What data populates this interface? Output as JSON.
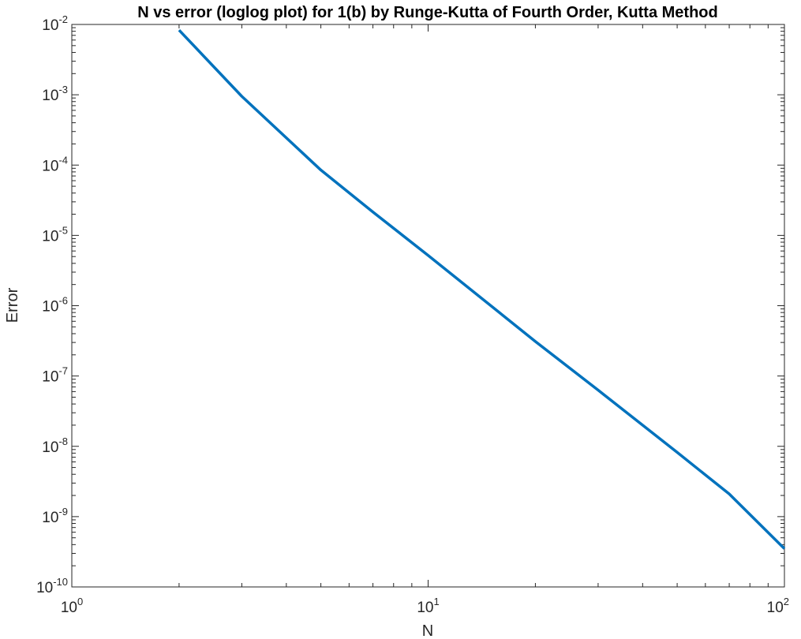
{
  "chart_data": {
    "type": "line",
    "title": "N vs error (loglog plot) for 1(b) by Runge-Kutta of Fourth Order, Kutta Method",
    "xlabel": "N",
    "ylabel": "Error",
    "xscale": "log",
    "yscale": "log",
    "xlim": [
      1,
      100
    ],
    "ylim": [
      1e-10,
      0.01
    ],
    "grid": false,
    "legend": "none",
    "x_ticks": [
      {
        "base": "10",
        "exp": "0",
        "value": 1
      },
      {
        "base": "10",
        "exp": "1",
        "value": 10
      },
      {
        "base": "10",
        "exp": "2",
        "value": 100
      }
    ],
    "y_ticks": [
      {
        "base": "10",
        "exp": "-10",
        "value": 1e-10
      },
      {
        "base": "10",
        "exp": "-9",
        "value": 1e-09
      },
      {
        "base": "10",
        "exp": "-8",
        "value": 1e-08
      },
      {
        "base": "10",
        "exp": "-7",
        "value": 1e-07
      },
      {
        "base": "10",
        "exp": "-6",
        "value": 1e-06
      },
      {
        "base": "10",
        "exp": "-5",
        "value": 1e-05
      },
      {
        "base": "10",
        "exp": "-4",
        "value": 0.0001
      },
      {
        "base": "10",
        "exp": "-3",
        "value": 0.001
      },
      {
        "base": "10",
        "exp": "-2",
        "value": 0.01
      }
    ],
    "series": [
      {
        "color": "#0072BD",
        "x": [
          2,
          3,
          5,
          7,
          10,
          20,
          30,
          50,
          70,
          100
        ],
        "y": [
          0.0083,
          0.00095,
          8.5e-05,
          2.15e-05,
          5.2e-06,
          3.1e-07,
          6.3e-08,
          8.2e-09,
          2.1e-09,
          3.5e-10
        ]
      }
    ]
  }
}
